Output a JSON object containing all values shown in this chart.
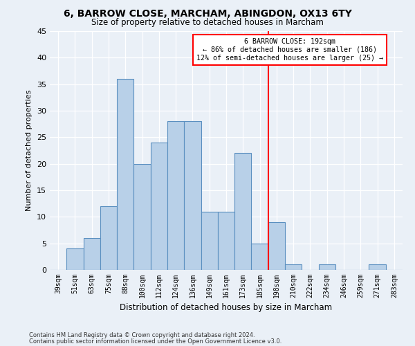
{
  "title_line1": "6, BARROW CLOSE, MARCHAM, ABINGDON, OX13 6TY",
  "title_line2": "Size of property relative to detached houses in Marcham",
  "xlabel": "Distribution of detached houses by size in Marcham",
  "ylabel": "Number of detached properties",
  "footer_line1": "Contains HM Land Registry data © Crown copyright and database right 2024.",
  "footer_line2": "Contains public sector information licensed under the Open Government Licence v3.0.",
  "categories": [
    "39sqm",
    "51sqm",
    "63sqm",
    "75sqm",
    "88sqm",
    "100sqm",
    "112sqm",
    "124sqm",
    "136sqm",
    "149sqm",
    "161sqm",
    "173sqm",
    "185sqm",
    "198sqm",
    "210sqm",
    "222sqm",
    "234sqm",
    "246sqm",
    "259sqm",
    "271sqm",
    "283sqm"
  ],
  "values": [
    0,
    4,
    6,
    12,
    36,
    20,
    24,
    28,
    28,
    11,
    11,
    22,
    5,
    9,
    1,
    0,
    1,
    0,
    0,
    1,
    0
  ],
  "bar_color": "#b8d0e8",
  "bar_edge_color": "#5a8fc0",
  "background_color": "#eaf0f7",
  "annotation_text_line1": "6 BARROW CLOSE: 192sqm",
  "annotation_text_line2": "← 86% of detached houses are smaller (186)",
  "annotation_text_line3": "12% of semi-detached houses are larger (25) →",
  "vline_color": "red",
  "vline_x": 13,
  "annotation_box_color": "white",
  "annotation_box_edge_color": "red",
  "ylim": [
    0,
    45
  ],
  "yticks": [
    0,
    5,
    10,
    15,
    20,
    25,
    30,
    35,
    40,
    45
  ]
}
